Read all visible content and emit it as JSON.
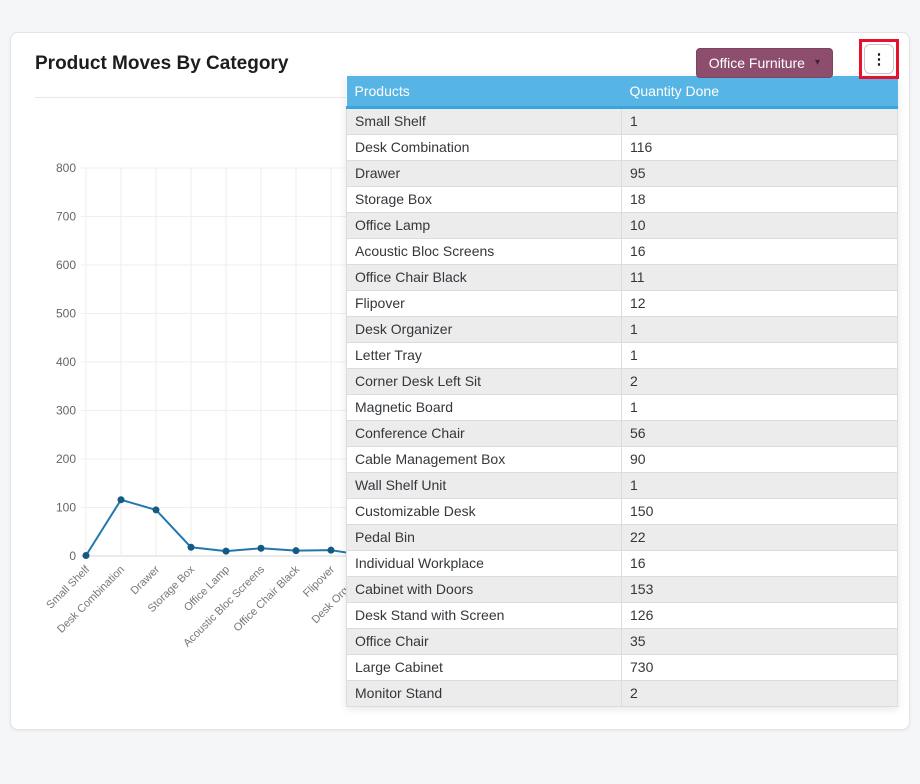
{
  "page": {
    "background": "#f5f6f8"
  },
  "card": {
    "title": "Product Moves By Category"
  },
  "toolbar": {
    "category_button": "Office Furniture",
    "category_button_color": "#8d4e6e",
    "highlight_color": "#e8112d",
    "icons": {
      "caret": "▾",
      "kebab": "⋮"
    }
  },
  "table": {
    "headers": [
      "Products",
      "Quantity Done"
    ],
    "header_color": "#57b5e6",
    "rows": [
      [
        "Small Shelf",
        1
      ],
      [
        "Desk Combination",
        116
      ],
      [
        "Drawer",
        95
      ],
      [
        "Storage Box",
        18
      ],
      [
        "Office Lamp",
        10
      ],
      [
        "Acoustic Bloc Screens",
        16
      ],
      [
        "Office Chair Black",
        11
      ],
      [
        "Flipover",
        12
      ],
      [
        "Desk Organizer",
        1
      ],
      [
        "Letter Tray",
        1
      ],
      [
        "Corner Desk Left Sit",
        2
      ],
      [
        "Magnetic Board",
        1
      ],
      [
        "Conference Chair",
        56
      ],
      [
        "Cable Management Box",
        90
      ],
      [
        "Wall Shelf Unit",
        1
      ],
      [
        "Customizable Desk",
        150
      ],
      [
        "Pedal Bin",
        22
      ],
      [
        "Individual Workplace",
        16
      ],
      [
        "Cabinet with Doors",
        153
      ],
      [
        "Desk Stand with Screen",
        126
      ],
      [
        "Office Chair",
        35
      ],
      [
        "Large Cabinet",
        730
      ],
      [
        "Monitor Stand",
        2
      ]
    ]
  },
  "chart_data": {
    "type": "line",
    "title": "Product Moves By Category",
    "categories": [
      "Small Shelf",
      "Desk Combination",
      "Drawer",
      "Storage Box",
      "Office Lamp",
      "Acoustic Bloc Screens",
      "Office Chair Black",
      "Flipover",
      "Desk Organizer",
      "Letter Tray",
      "Corner Desk Left Sit",
      "Magnetic Board",
      "Conference Chair",
      "Cable Management Box",
      "Wall Shelf Unit",
      "Customizable Desk",
      "Pedal Bin",
      "Individual Workplace",
      "Cabinet with Doors",
      "Desk Stand with Screen",
      "Office Chair",
      "Large Cabinet",
      "Monitor Stand"
    ],
    "values": [
      1,
      116,
      95,
      18,
      10,
      16,
      11,
      12,
      1,
      1,
      2,
      1,
      56,
      90,
      1,
      150,
      22,
      16,
      153,
      126,
      35,
      730,
      2
    ],
    "xlabel": "",
    "ylabel": "",
    "ylim": [
      0,
      800
    ],
    "yticks": [
      0,
      100,
      200,
      300,
      400,
      500,
      600,
      700,
      800
    ],
    "grid": true,
    "legend": "none",
    "line_color": "#2178ae",
    "point_color": "#155a82"
  }
}
